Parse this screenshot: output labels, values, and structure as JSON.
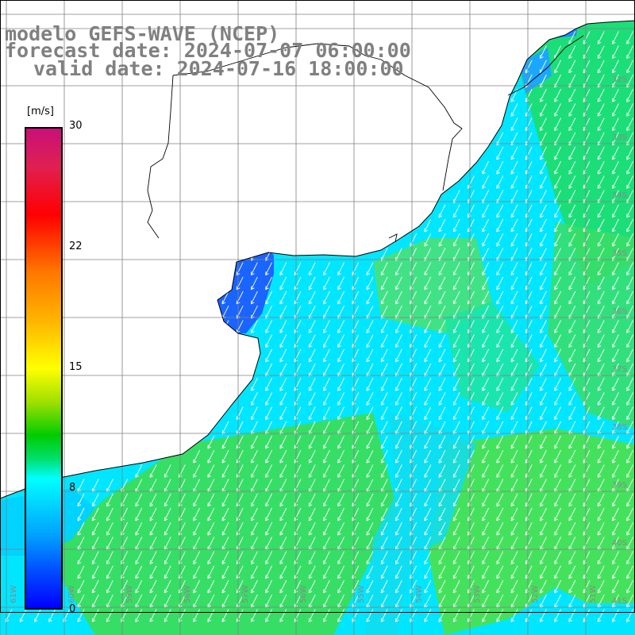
{
  "title": {
    "model": "modelo GEFS-WAVE (NCEP)",
    "forecast": "forecast date: 2024-07-07 06:00:00",
    "valid": "valid date: 2024-07-16 18:00:00"
  },
  "colorbar": {
    "unit": "[m/s]",
    "ticks": [
      "30",
      "22",
      "15",
      "8",
      "0"
    ],
    "colors": [
      "#c8107a",
      "#ff0000",
      "#ffff00",
      "#00cc00",
      "#00ffff",
      "#0000ff"
    ]
  },
  "lat_labels": [
    "32S",
    "33S",
    "34S",
    "35S",
    "36S",
    "37S",
    "38S",
    "39S",
    "40S",
    "41S"
  ],
  "lon_labels": [
    "61W",
    "60W",
    "59W",
    "58W",
    "57W",
    "56W",
    "55W",
    "54W",
    "53W",
    "52W",
    "51W"
  ],
  "colors": {
    "land": "#ffffff",
    "grid": "#808080",
    "coast": "#000000",
    "arrows": "#ffffff",
    "estuary": "#1a64ff",
    "shelf": "#00e6ff",
    "open_sea": "#33e033"
  }
}
